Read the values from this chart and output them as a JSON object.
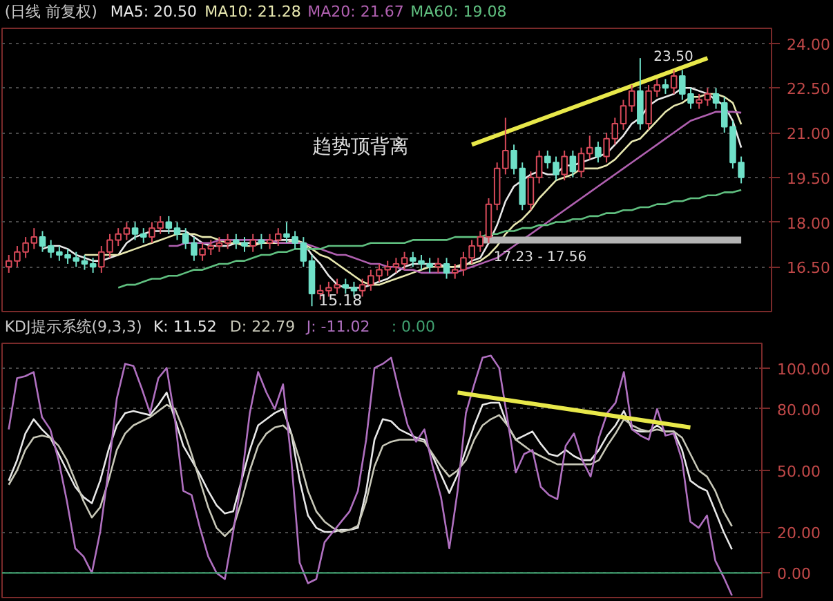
{
  "chart_data": [
    {
      "type": "candlestick",
      "title": "(日线 前复权)",
      "grid": "y",
      "tick_labels": "y",
      "categories": [
        null,
        null,
        null,
        null,
        null,
        null,
        null,
        null,
        null,
        null,
        null,
        null,
        null,
        null,
        null,
        null,
        null,
        null,
        null,
        null,
        null,
        null,
        null,
        null,
        null,
        null,
        null,
        null,
        null,
        null,
        null,
        null,
        null,
        null,
        null,
        null,
        null,
        null,
        null,
        null,
        null,
        null,
        null,
        null,
        null,
        null,
        null,
        null,
        null,
        null,
        null,
        null,
        null,
        null,
        null,
        null,
        null,
        null,
        null,
        null,
        null,
        null,
        null,
        null,
        null,
        null,
        null,
        null,
        null,
        null,
        null,
        null,
        null,
        null,
        null,
        null,
        null,
        null,
        null,
        null,
        null,
        null,
        null,
        null,
        null,
        null,
        null,
        null
      ],
      "ohlc": [
        [
          16.5,
          16.9,
          16.3,
          16.7
        ],
        [
          16.7,
          17.2,
          16.5,
          17.0
        ],
        [
          17.0,
          17.5,
          16.8,
          17.3
        ],
        [
          17.3,
          17.8,
          17.1,
          17.5
        ],
        [
          17.5,
          17.7,
          17.0,
          17.2
        ],
        [
          17.2,
          17.4,
          16.8,
          17.0
        ],
        [
          17.0,
          17.2,
          16.7,
          16.9
        ],
        [
          16.9,
          17.1,
          16.6,
          16.8
        ],
        [
          16.8,
          17.0,
          16.5,
          16.7
        ],
        [
          16.7,
          16.9,
          16.4,
          16.6
        ],
        [
          16.6,
          16.8,
          16.3,
          16.5
        ],
        [
          16.5,
          17.2,
          16.3,
          17.0
        ],
        [
          17.0,
          17.6,
          16.8,
          17.4
        ],
        [
          17.4,
          17.8,
          17.2,
          17.6
        ],
        [
          17.6,
          18.0,
          17.4,
          17.8
        ],
        [
          17.8,
          18.0,
          17.4,
          17.6
        ],
        [
          17.6,
          17.8,
          17.3,
          17.5
        ],
        [
          17.5,
          18.0,
          17.3,
          17.8
        ],
        [
          17.8,
          18.2,
          17.6,
          18.0
        ],
        [
          18.0,
          18.2,
          17.6,
          17.8
        ],
        [
          17.8,
          18.0,
          17.4,
          17.6
        ],
        [
          17.6,
          17.8,
          17.1,
          17.3
        ],
        [
          17.3,
          17.5,
          16.7,
          16.9
        ],
        [
          16.9,
          17.3,
          16.7,
          17.1
        ],
        [
          17.1,
          17.4,
          16.9,
          17.2
        ],
        [
          17.2,
          17.5,
          17.0,
          17.3
        ],
        [
          17.3,
          17.6,
          17.1,
          17.4
        ],
        [
          17.4,
          17.6,
          17.1,
          17.3
        ],
        [
          17.3,
          17.5,
          17.0,
          17.2
        ],
        [
          17.2,
          17.6,
          17.0,
          17.4
        ],
        [
          17.4,
          17.6,
          17.1,
          17.3
        ],
        [
          17.3,
          17.6,
          17.1,
          17.4
        ],
        [
          17.4,
          17.8,
          17.2,
          17.6
        ],
        [
          17.6,
          18.0,
          17.3,
          17.5
        ],
        [
          17.5,
          17.7,
          17.1,
          17.3
        ],
        [
          17.3,
          17.5,
          16.5,
          16.7
        ],
        [
          16.7,
          16.9,
          15.18,
          15.6
        ],
        [
          15.6,
          15.9,
          15.4,
          15.7
        ],
        [
          15.7,
          16.0,
          15.5,
          15.8
        ],
        [
          15.8,
          16.1,
          15.6,
          15.9
        ],
        [
          15.9,
          16.1,
          15.6,
          15.8
        ],
        [
          15.8,
          16.0,
          15.5,
          15.7
        ],
        [
          15.7,
          16.1,
          15.5,
          15.9
        ],
        [
          15.9,
          16.4,
          15.7,
          16.2
        ],
        [
          16.2,
          16.6,
          16.0,
          16.4
        ],
        [
          16.4,
          16.7,
          16.2,
          16.5
        ],
        [
          16.5,
          16.8,
          16.3,
          16.6
        ],
        [
          16.6,
          17.0,
          16.4,
          16.8
        ],
        [
          16.8,
          17.0,
          16.5,
          16.7
        ],
        [
          16.7,
          16.9,
          16.4,
          16.6
        ],
        [
          16.6,
          16.8,
          16.3,
          16.5
        ],
        [
          16.5,
          16.8,
          16.3,
          16.6
        ],
        [
          16.6,
          16.8,
          16.1,
          16.3
        ],
        [
          16.3,
          16.6,
          16.1,
          16.4
        ],
        [
          16.4,
          17.0,
          16.2,
          16.8
        ],
        [
          16.8,
          17.4,
          16.6,
          17.2
        ],
        [
          17.2,
          17.7,
          17.0,
          17.5
        ],
        [
          17.5,
          18.8,
          17.3,
          18.6
        ],
        [
          18.6,
          20.0,
          18.4,
          19.8
        ],
        [
          19.8,
          21.5,
          19.6,
          20.4
        ],
        [
          20.4,
          20.6,
          19.6,
          19.8
        ],
        [
          19.8,
          20.0,
          18.4,
          18.6
        ],
        [
          18.6,
          19.7,
          18.4,
          19.5
        ],
        [
          19.5,
          20.4,
          19.3,
          20.2
        ],
        [
          20.2,
          20.4,
          19.8,
          20.0
        ],
        [
          20.0,
          20.2,
          19.4,
          19.6
        ],
        [
          19.6,
          20.4,
          19.4,
          20.2
        ],
        [
          20.2,
          20.4,
          19.5,
          19.7
        ],
        [
          19.7,
          20.5,
          19.5,
          20.3
        ],
        [
          20.3,
          20.9,
          20.1,
          20.5
        ],
        [
          20.5,
          20.7,
          20.0,
          20.2
        ],
        [
          20.2,
          21.0,
          20.0,
          20.8
        ],
        [
          20.8,
          21.5,
          20.6,
          21.3
        ],
        [
          21.3,
          22.1,
          21.1,
          21.9
        ],
        [
          21.9,
          22.6,
          21.7,
          22.4
        ],
        [
          22.4,
          23.5,
          21.1,
          21.3
        ],
        [
          21.3,
          22.6,
          21.1,
          22.4
        ],
        [
          22.4,
          22.8,
          22.2,
          22.6
        ],
        [
          22.6,
          22.8,
          22.3,
          22.5
        ],
        [
          22.5,
          23.1,
          22.3,
          22.9
        ],
        [
          22.9,
          23.1,
          22.1,
          22.3
        ],
        [
          22.3,
          22.5,
          21.8,
          22.0
        ],
        [
          22.0,
          22.3,
          21.8,
          22.1
        ],
        [
          22.1,
          22.5,
          21.9,
          22.3
        ],
        [
          22.3,
          22.5,
          21.8,
          22.0
        ],
        [
          22.0,
          22.2,
          21.0,
          21.2
        ],
        [
          21.2,
          21.4,
          19.8,
          20.0
        ],
        [
          20.0,
          20.2,
          19.3,
          19.5
        ]
      ],
      "colors": [
        "#d84a5a",
        "#d84a5a",
        "#d84a5a",
        "#d84a5a",
        "#6fe0c8",
        "#6fe0c8",
        "#6fe0c8",
        "#6fe0c8",
        "#6fe0c8",
        "#6fe0c8",
        "#6fe0c8",
        "#d84a5a",
        "#d84a5a",
        "#d84a5a",
        "#d84a5a",
        "#6fe0c8",
        "#6fe0c8",
        "#d84a5a",
        "#d84a5a",
        "#6fe0c8",
        "#6fe0c8",
        "#6fe0c8",
        "#6fe0c8",
        "#d84a5a",
        "#d84a5a",
        "#d84a5a",
        "#d84a5a",
        "#6fe0c8",
        "#6fe0c8",
        "#d84a5a",
        "#6fe0c8",
        "#d84a5a",
        "#d84a5a",
        "#6fe0c8",
        "#6fe0c8",
        "#6fe0c8",
        "#6fe0c8",
        "#d84a5a",
        "#d84a5a",
        "#d84a5a",
        "#6fe0c8",
        "#6fe0c8",
        "#d84a5a",
        "#d84a5a",
        "#d84a5a",
        "#d84a5a",
        "#d84a5a",
        "#d84a5a",
        "#6fe0c8",
        "#6fe0c8",
        "#6fe0c8",
        "#d84a5a",
        "#6fe0c8",
        "#d84a5a",
        "#d84a5a",
        "#d84a5a",
        "#d84a5a",
        "#d84a5a",
        "#d84a5a",
        "#d84a5a",
        "#6fe0c8",
        "#6fe0c8",
        "#d84a5a",
        "#d84a5a",
        "#6fe0c8",
        "#6fe0c8",
        "#d84a5a",
        "#6fe0c8",
        "#d84a5a",
        "#d84a5a",
        "#6fe0c8",
        "#d84a5a",
        "#d84a5a",
        "#d84a5a",
        "#d84a5a",
        "#6fe0c8",
        "#d84a5a",
        "#d84a5a",
        "#6fe0c8",
        "#d84a5a",
        "#6fe0c8",
        "#6fe0c8",
        "#d84a5a",
        "#d84a5a",
        "#6fe0c8",
        "#6fe0c8",
        "#6fe0c8",
        "#6fe0c8"
      ],
      "series": [
        {
          "name": "MA5: 20.50",
          "type": "line",
          "color": "#e8e8e8",
          "values": [
            null,
            null,
            null,
            null,
            17.1,
            17.2,
            17.2,
            17.1,
            16.9,
            16.8,
            16.7,
            16.7,
            16.8,
            16.9,
            17.3,
            17.5,
            17.6,
            17.7,
            17.7,
            17.7,
            17.7,
            17.7,
            17.5,
            17.3,
            17.2,
            17.2,
            17.2,
            17.3,
            17.3,
            17.3,
            17.3,
            17.3,
            17.4,
            17.4,
            17.4,
            17.3,
            16.9,
            16.6,
            16.2,
            15.9,
            15.8,
            15.8,
            15.8,
            15.9,
            16.0,
            16.1,
            16.3,
            16.5,
            16.6,
            16.6,
            16.6,
            16.6,
            16.5,
            16.5,
            16.5,
            16.7,
            16.8,
            17.3,
            17.9,
            18.7,
            19.2,
            19.4,
            19.6,
            19.7,
            19.6,
            19.6,
            19.9,
            19.9,
            20.0,
            20.1,
            20.2,
            20.3,
            20.6,
            20.9,
            21.3,
            21.5,
            21.9,
            22.1,
            22.2,
            22.3,
            22.5,
            22.5,
            22.4,
            22.3,
            22.1,
            21.9,
            21.4,
            20.5
          ]
        },
        {
          "name": "MA10: 21.28",
          "type": "line",
          "color": "#e8e8b0",
          "values": [
            null,
            null,
            null,
            null,
            null,
            null,
            null,
            null,
            null,
            16.9,
            16.9,
            16.9,
            16.9,
            16.9,
            17.0,
            17.1,
            17.2,
            17.3,
            17.4,
            17.5,
            17.6,
            17.6,
            17.6,
            17.5,
            17.5,
            17.4,
            17.3,
            17.3,
            17.2,
            17.2,
            17.3,
            17.3,
            17.3,
            17.3,
            17.4,
            17.3,
            17.1,
            16.9,
            16.8,
            16.6,
            16.4,
            16.2,
            16.0,
            15.9,
            15.9,
            16.0,
            16.1,
            16.2,
            16.3,
            16.4,
            16.5,
            16.5,
            16.5,
            16.5,
            16.6,
            16.6,
            16.7,
            16.9,
            17.2,
            17.6,
            17.9,
            18.1,
            18.4,
            18.8,
            19.1,
            19.4,
            19.5,
            19.6,
            19.8,
            19.8,
            19.8,
            19.9,
            20.1,
            20.4,
            20.7,
            20.8,
            21.1,
            21.4,
            21.7,
            21.9,
            22.0,
            22.2,
            22.2,
            22.3,
            22.3,
            22.2,
            22.0,
            21.28
          ]
        },
        {
          "name": "MA20: 21.67",
          "type": "line",
          "color": "#b060b0",
          "values": [
            null,
            null,
            null,
            null,
            null,
            null,
            null,
            null,
            null,
            null,
            null,
            null,
            null,
            null,
            null,
            null,
            null,
            null,
            null,
            17.2,
            17.2,
            17.3,
            17.3,
            17.3,
            17.3,
            17.4,
            17.4,
            17.4,
            17.4,
            17.4,
            17.4,
            17.4,
            17.3,
            17.3,
            17.3,
            17.3,
            17.2,
            17.1,
            17.0,
            16.9,
            16.9,
            16.8,
            16.7,
            16.6,
            16.6,
            16.5,
            16.5,
            16.4,
            16.4,
            16.3,
            16.3,
            16.3,
            16.3,
            16.3,
            16.4,
            16.5,
            16.6,
            16.7,
            16.8,
            17.0,
            17.2,
            17.4,
            17.6,
            17.8,
            18.0,
            18.2,
            18.4,
            18.6,
            18.8,
            19.0,
            19.2,
            19.4,
            19.6,
            19.8,
            20.0,
            20.2,
            20.4,
            20.6,
            20.8,
            21.0,
            21.2,
            21.4,
            21.5,
            21.6,
            21.7,
            21.7,
            21.7,
            21.67
          ]
        },
        {
          "name": "MA60: 19.08",
          "type": "line",
          "color": "#60c080",
          "values": [
            null,
            null,
            null,
            null,
            null,
            null,
            null,
            null,
            null,
            null,
            null,
            null,
            null,
            15.8,
            15.9,
            15.9,
            16.0,
            16.1,
            16.1,
            16.2,
            16.2,
            16.3,
            16.4,
            16.4,
            16.5,
            16.6,
            16.6,
            16.7,
            16.7,
            16.8,
            16.9,
            16.9,
            17.0,
            17.0,
            17.1,
            17.1,
            17.1,
            17.1,
            17.2,
            17.2,
            17.2,
            17.2,
            17.2,
            17.3,
            17.3,
            17.3,
            17.3,
            17.3,
            17.4,
            17.4,
            17.4,
            17.4,
            17.4,
            17.5,
            17.5,
            17.5,
            17.5,
            17.6,
            17.6,
            17.7,
            17.7,
            17.8,
            17.8,
            17.9,
            17.9,
            18.0,
            18.0,
            18.1,
            18.1,
            18.2,
            18.2,
            18.3,
            18.3,
            18.4,
            18.4,
            18.5,
            18.5,
            18.6,
            18.6,
            18.7,
            18.7,
            18.8,
            18.8,
            18.9,
            18.9,
            19.0,
            19.0,
            19.08
          ]
        },
        {
          "type": "line",
          "color": "#e8e84a",
          "values": [
            null,
            null,
            null,
            null,
            null,
            null,
            null,
            null,
            null,
            null,
            null,
            null,
            null,
            null,
            null,
            null,
            null,
            null,
            null,
            null,
            null,
            null,
            null,
            null,
            null,
            null,
            null,
            null,
            null,
            null,
            null,
            null,
            null,
            null,
            null,
            null,
            null,
            null,
            null,
            null,
            null,
            null,
            null,
            null,
            null,
            null,
            null,
            null,
            null,
            null,
            null,
            null,
            null,
            null,
            null,
            20.6,
            null,
            null,
            null,
            null,
            null,
            null,
            null,
            null,
            null,
            null,
            null,
            null,
            null,
            null,
            null,
            null,
            null,
            null,
            null,
            null,
            null,
            null,
            null,
            null,
            null,
            null,
            null,
            23.5,
            null,
            null,
            null,
            null
          ]
        },
        {
          "type": "line",
          "color": "#b4b4b4",
          "values": [
            null,
            null,
            null,
            null,
            null,
            null,
            null,
            null,
            null,
            null,
            null,
            null,
            null,
            null,
            null,
            null,
            null,
            null,
            null,
            null,
            null,
            null,
            null,
            null,
            null,
            null,
            null,
            null,
            null,
            null,
            null,
            null,
            null,
            null,
            null,
            null,
            null,
            null,
            null,
            null,
            null,
            null,
            null,
            null,
            null,
            null,
            null,
            null,
            null,
            null,
            null,
            null,
            null,
            null,
            null,
            null,
            17.4,
            17.4,
            17.4,
            17.4,
            17.4,
            17.4,
            17.4,
            17.4,
            17.4,
            17.4,
            17.4,
            17.4,
            17.4,
            17.4,
            17.4,
            17.4,
            17.4,
            17.4,
            17.4,
            17.4,
            17.4,
            17.4,
            17.4,
            17.4,
            17.4,
            17.4,
            17.4,
            17.4,
            17.4,
            17.4,
            17.4,
            17.4
          ]
        }
      ],
      "ylim": [
        15.0,
        24.5
      ],
      "yticks": [
        {
          "value": 16.5,
          "label": "16.50"
        },
        {
          "value": 18,
          "label": "18.00"
        },
        {
          "value": 19.5,
          "label": "19.50"
        },
        {
          "value": 21,
          "label": "21.00"
        },
        {
          "value": 22.5,
          "label": "22.50"
        },
        {
          "value": 24,
          "label": "24.00"
        }
      ],
      "annotations": [
        "趋势顶背离",
        "17.23 - 17.56",
        "15.18",
        "23.50"
      ]
    },
    {
      "type": "line",
      "title": "KDJ提示系统(9,3,3)",
      "grid": "y",
      "tick_labels": "y",
      "categories": [
        null,
        null,
        null,
        null,
        null,
        null,
        null,
        null,
        null,
        null,
        null,
        null,
        null,
        null,
        null,
        null,
        null,
        null,
        null,
        null,
        null,
        null,
        null,
        null,
        null,
        null,
        null,
        null,
        null,
        null,
        null,
        null,
        null,
        null,
        null,
        null,
        null,
        null,
        null,
        null,
        null,
        null,
        null,
        null,
        null,
        null,
        null,
        null,
        null,
        null,
        null,
        null,
        null,
        null,
        null,
        null,
        null,
        null,
        null,
        null,
        null,
        null,
        null,
        null,
        null,
        null,
        null,
        null,
        null,
        null,
        null,
        null,
        null,
        null,
        null,
        null,
        null,
        null,
        null,
        null,
        null,
        null,
        null,
        null,
        null,
        null,
        null,
        null
      ],
      "series": [
        {
          "name": "K: 11.52",
          "color": "#e8e8e8",
          "values": [
            45,
            55,
            68,
            75,
            70,
            66,
            58,
            50,
            42,
            37,
            34,
            45,
            60,
            72,
            78,
            79,
            78,
            77,
            82,
            88,
            75,
            62,
            55,
            48,
            40,
            33,
            29,
            30,
            45,
            60,
            72,
            75,
            78,
            80,
            68,
            45,
            28,
            22,
            20,
            20,
            21,
            21,
            22,
            40,
            65,
            75,
            74,
            70,
            68,
            66,
            65,
            57,
            48,
            39,
            48,
            60,
            72,
            82,
            83,
            83,
            72,
            65,
            67,
            69,
            63,
            58,
            57,
            60,
            57,
            55,
            55,
            60,
            67,
            72,
            79,
            70,
            69,
            69,
            72,
            69,
            69,
            60,
            45,
            42,
            40,
            30,
            20,
            11.52
          ]
        },
        {
          "name": "D: 22.79",
          "color": "#c8c8b8",
          "values": [
            43,
            50,
            60,
            66,
            67,
            66,
            62,
            55,
            45,
            35,
            27,
            32,
            45,
            60,
            68,
            72,
            74,
            76,
            79,
            82,
            80,
            70,
            58,
            45,
            32,
            22,
            18,
            22,
            35,
            50,
            62,
            68,
            71,
            72,
            68,
            55,
            40,
            30,
            25,
            22,
            20,
            21,
            23,
            35,
            52,
            62,
            64,
            65,
            65,
            65,
            64,
            58,
            52,
            47,
            50,
            55,
            65,
            72,
            75,
            77,
            72,
            65,
            62,
            59,
            57,
            55,
            53,
            53,
            53,
            53,
            53,
            55,
            62,
            68,
            75,
            72,
            70,
            69,
            70,
            69,
            69,
            66,
            58,
            50,
            47,
            40,
            30,
            22.79
          ]
        },
        {
          "name": "J: -11.02",
          "color": "#b070c0",
          "values": [
            70,
            95,
            96,
            98,
            76,
            70,
            55,
            35,
            12,
            8,
            0,
            20,
            50,
            85,
            102,
            101,
            90,
            78,
            95,
            100,
            75,
            40,
            38,
            22,
            8,
            0,
            -3,
            20,
            45,
            78,
            98,
            88,
            80,
            92,
            55,
            5,
            -5,
            -3,
            15,
            20,
            25,
            30,
            40,
            65,
            100,
            102,
            105,
            88,
            72,
            64,
            70,
            52,
            37,
            12,
            40,
            78,
            92,
            105,
            106,
            100,
            75,
            49,
            58,
            60,
            42,
            38,
            36,
            62,
            68,
            55,
            47,
            66,
            78,
            83,
            98,
            70,
            67,
            65,
            80,
            67,
            68,
            55,
            25,
            22,
            28,
            6,
            -2,
            -11.02
          ]
        },
        {
          "type": "line",
          "color": "#e8e84a",
          "values": [
            null,
            null,
            null,
            null,
            null,
            null,
            null,
            null,
            null,
            null,
            null,
            null,
            null,
            null,
            null,
            null,
            null,
            null,
            null,
            null,
            null,
            null,
            null,
            null,
            null,
            null,
            null,
            null,
            null,
            null,
            null,
            null,
            null,
            null,
            null,
            null,
            null,
            null,
            null,
            null,
            null,
            null,
            null,
            null,
            null,
            null,
            null,
            null,
            null,
            null,
            null,
            null,
            null,
            null,
            88,
            null,
            null,
            null,
            null,
            null,
            null,
            null,
            null,
            null,
            null,
            null,
            null,
            null,
            null,
            null,
            null,
            null,
            null,
            null,
            null,
            null,
            null,
            null,
            null,
            null,
            null,
            null,
            71,
            null,
            null,
            null,
            null,
            null
          ]
        }
      ],
      "ylim": [
        -12,
        112
      ],
      "yticks": [
        {
          "value": 0,
          "label": "0.00"
        },
        {
          "value": 20,
          "label": "20.00"
        },
        {
          "value": 50,
          "label": "50.00"
        },
        {
          "value": 80,
          "label": "80.00"
        },
        {
          "value": 100,
          "label": "100.00"
        }
      ],
      "ref_lines": [
        {
          "axis": "y",
          "value": 0,
          "color": "#40a070"
        }
      ],
      "annotations": [
        ": 0.00"
      ]
    }
  ]
}
